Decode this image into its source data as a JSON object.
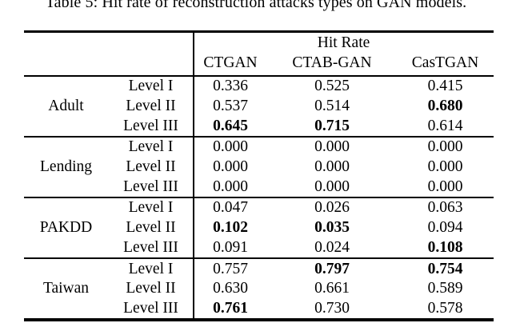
{
  "caption": "Table 5: Hit rate of reconstruction attacks types on GAN models.",
  "table": {
    "group_header": "Hit Rate",
    "columns": [
      "CTGAN",
      "CTAB-GAN",
      "CasTGAN"
    ],
    "sections": [
      {
        "dataset": "Adult",
        "rows": [
          {
            "level": "Level I",
            "values": [
              "0.336",
              "0.525",
              "0.415"
            ],
            "bold": [
              false,
              false,
              false
            ]
          },
          {
            "level": "Level II",
            "values": [
              "0.537",
              "0.514",
              "0.680"
            ],
            "bold": [
              false,
              false,
              true
            ]
          },
          {
            "level": "Level III",
            "values": [
              "0.645",
              "0.715",
              "0.614"
            ],
            "bold": [
              true,
              true,
              false
            ]
          }
        ]
      },
      {
        "dataset": "Lending",
        "rows": [
          {
            "level": "Level I",
            "values": [
              "0.000",
              "0.000",
              "0.000"
            ],
            "bold": [
              false,
              false,
              false
            ]
          },
          {
            "level": "Level II",
            "values": [
              "0.000",
              "0.000",
              "0.000"
            ],
            "bold": [
              false,
              false,
              false
            ]
          },
          {
            "level": "Level III",
            "values": [
              "0.000",
              "0.000",
              "0.000"
            ],
            "bold": [
              false,
              false,
              false
            ]
          }
        ]
      },
      {
        "dataset": "PAKDD",
        "rows": [
          {
            "level": "Level I",
            "values": [
              "0.047",
              "0.026",
              "0.063"
            ],
            "bold": [
              false,
              false,
              false
            ]
          },
          {
            "level": "Level II",
            "values": [
              "0.102",
              "0.035",
              "0.094"
            ],
            "bold": [
              true,
              true,
              false
            ]
          },
          {
            "level": "Level III",
            "values": [
              "0.091",
              "0.024",
              "0.108"
            ],
            "bold": [
              false,
              false,
              true
            ]
          }
        ]
      },
      {
        "dataset": "Taiwan",
        "rows": [
          {
            "level": "Level I",
            "values": [
              "0.757",
              "0.797",
              "0.754"
            ],
            "bold": [
              false,
              true,
              true
            ]
          },
          {
            "level": "Level II",
            "values": [
              "0.630",
              "0.661",
              "0.589"
            ],
            "bold": [
              false,
              false,
              false
            ]
          },
          {
            "level": "Level III",
            "values": [
              "0.761",
              "0.730",
              "0.578"
            ],
            "bold": [
              true,
              false,
              false
            ]
          }
        ]
      }
    ]
  }
}
